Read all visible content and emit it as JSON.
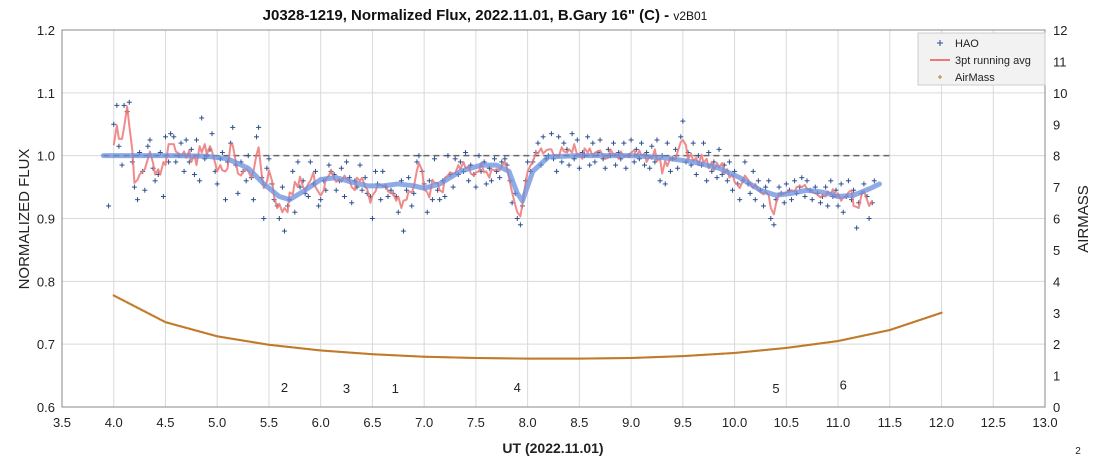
{
  "chart_data": {
    "type": "scatter",
    "title": "J0328-1219, Normalized Flux, 2022.11.01, B.Gary 16\" (C)",
    "title_suffix": " - ",
    "version": "v2B01",
    "xlabel": "UT (2022.11.01)",
    "ylabel": "NORMALIZED FLUX",
    "y2label": "AIRMASS",
    "xlim": [
      3.5,
      13.0
    ],
    "ylim": [
      0.6,
      1.2
    ],
    "y2lim": [
      0,
      12
    ],
    "x_ticks": [
      "3.5",
      "4.0",
      "4.5",
      "5.0",
      "5.5",
      "6.0",
      "6.5",
      "7.0",
      "7.5",
      "8.0",
      "8.5",
      "9.0",
      "9.5",
      "10.0",
      "10.5",
      "11.0",
      "11.5",
      "12.0",
      "12.5",
      "13.0"
    ],
    "y_ticks": [
      "0.6",
      "0.7",
      "0.8",
      "0.9",
      "1.0",
      "1.1",
      "1.2"
    ],
    "y2_ticks": [
      "0",
      "1",
      "2",
      "3",
      "4",
      "5",
      "6",
      "7",
      "8",
      "9",
      "10",
      "11",
      "12"
    ],
    "grid": true,
    "legend_position": "top-right",
    "legend": [
      {
        "name": "HAO",
        "color": "#2f4f8f",
        "marker": "plus"
      },
      {
        "name": "3pt running avg",
        "color": "#ee7777",
        "marker": "line"
      },
      {
        "name": "AirMass",
        "color": "#c07a2a",
        "marker": "plus-small"
      }
    ],
    "reference_line": {
      "y": 1.0,
      "x_range": [
        3.9,
        11.5
      ],
      "style": "dashed",
      "color": "#666666"
    },
    "model_curve": {
      "color": "#6a8fdc",
      "points": [
        [
          3.9,
          1.0
        ],
        [
          4.2,
          1.0
        ],
        [
          4.6,
          1.0
        ],
        [
          4.9,
          0.999
        ],
        [
          5.1,
          0.995
        ],
        [
          5.3,
          0.98
        ],
        [
          5.45,
          0.955
        ],
        [
          5.6,
          0.935
        ],
        [
          5.7,
          0.93
        ],
        [
          5.85,
          0.945
        ],
        [
          6.0,
          0.962
        ],
        [
          6.15,
          0.965
        ],
        [
          6.3,
          0.958
        ],
        [
          6.45,
          0.952
        ],
        [
          6.6,
          0.952
        ],
        [
          6.75,
          0.955
        ],
        [
          6.9,
          0.952
        ],
        [
          7.0,
          0.948
        ],
        [
          7.15,
          0.955
        ],
        [
          7.35,
          0.975
        ],
        [
          7.55,
          0.985
        ],
        [
          7.7,
          0.985
        ],
        [
          7.82,
          0.975
        ],
        [
          7.9,
          0.94
        ],
        [
          7.95,
          0.928
        ],
        [
          8.05,
          0.975
        ],
        [
          8.2,
          0.998
        ],
        [
          8.5,
          1.0
        ],
        [
          9.0,
          1.0
        ],
        [
          9.3,
          0.997
        ],
        [
          9.6,
          0.99
        ],
        [
          9.85,
          0.98
        ],
        [
          10.05,
          0.965
        ],
        [
          10.25,
          0.945
        ],
        [
          10.4,
          0.937
        ],
        [
          10.55,
          0.94
        ],
        [
          10.7,
          0.945
        ],
        [
          10.85,
          0.942
        ],
        [
          11.0,
          0.935
        ],
        [
          11.15,
          0.937
        ],
        [
          11.3,
          0.947
        ],
        [
          11.4,
          0.955
        ]
      ]
    },
    "airmass": {
      "color": "#c07a2a",
      "points": [
        [
          4.0,
          3.55
        ],
        [
          4.5,
          2.7
        ],
        [
          5.0,
          2.25
        ],
        [
          5.5,
          1.98
        ],
        [
          6.0,
          1.8
        ],
        [
          6.5,
          1.68
        ],
        [
          7.0,
          1.6
        ],
        [
          7.5,
          1.56
        ],
        [
          8.0,
          1.54
        ],
        [
          8.5,
          1.54
        ],
        [
          9.0,
          1.56
        ],
        [
          9.5,
          1.62
        ],
        [
          10.0,
          1.72
        ],
        [
          10.5,
          1.88
        ],
        [
          11.0,
          2.1
        ],
        [
          11.5,
          2.45
        ],
        [
          12.0,
          3.0
        ]
      ]
    },
    "hao_points": [
      [
        3.95,
        0.92
      ],
      [
        4.0,
        1.05
      ],
      [
        4.03,
        1.08
      ],
      [
        4.05,
        1.015
      ],
      [
        4.08,
        0.985
      ],
      [
        4.1,
        1.08
      ],
      [
        4.13,
        1.07
      ],
      [
        4.15,
        1.085
      ],
      [
        4.18,
        0.99
      ],
      [
        4.2,
        0.95
      ],
      [
        4.23,
        0.93
      ],
      [
        4.25,
        1.005
      ],
      [
        4.28,
        0.975
      ],
      [
        4.3,
        0.945
      ],
      [
        4.33,
        1.015
      ],
      [
        4.35,
        1.025
      ],
      [
        4.38,
        0.98
      ],
      [
        4.4,
        0.96
      ],
      [
        4.43,
        0.97
      ],
      [
        4.45,
        1.005
      ],
      [
        4.48,
        0.935
      ],
      [
        4.5,
        1.03
      ],
      [
        4.53,
        0.99
      ],
      [
        4.55,
        1.035
      ],
      [
        4.58,
        1.03
      ],
      [
        4.6,
        0.99
      ],
      [
        4.63,
        1.0
      ],
      [
        4.65,
        1.02
      ],
      [
        4.68,
        0.975
      ],
      [
        4.7,
        1.025
      ],
      [
        4.73,
        0.99
      ],
      [
        4.75,
        1.01
      ],
      [
        4.78,
        0.97
      ],
      [
        4.8,
        1.025
      ],
      [
        4.83,
        0.96
      ],
      [
        4.85,
        1.06
      ],
      [
        4.88,
        0.995
      ],
      [
        4.9,
        1.0
      ],
      [
        4.93,
        1.01
      ],
      [
        4.95,
        1.035
      ],
      [
        4.98,
        0.975
      ],
      [
        5.0,
        0.955
      ],
      [
        5.03,
        0.995
      ],
      [
        5.05,
        1.005
      ],
      [
        5.08,
        0.93
      ],
      [
        5.1,
        0.99
      ],
      [
        5.13,
        1.02
      ],
      [
        5.15,
        1.045
      ],
      [
        5.18,
        0.985
      ],
      [
        5.2,
        0.94
      ],
      [
        5.23,
        0.99
      ],
      [
        5.25,
        0.975
      ],
      [
        5.28,
        0.96
      ],
      [
        5.3,
        1.0
      ],
      [
        5.33,
        0.965
      ],
      [
        5.35,
        0.93
      ],
      [
        5.38,
        1.03
      ],
      [
        5.4,
        1.045
      ],
      [
        5.43,
        0.965
      ],
      [
        5.45,
        0.9
      ],
      [
        5.48,
        0.98
      ],
      [
        5.5,
        0.995
      ],
      [
        5.53,
        0.955
      ],
      [
        5.55,
        0.93
      ],
      [
        5.58,
        0.92
      ],
      [
        5.6,
        0.9
      ],
      [
        5.63,
        0.95
      ],
      [
        5.65,
        0.88
      ],
      [
        5.68,
        0.92
      ],
      [
        5.7,
        0.93
      ],
      [
        5.73,
        0.975
      ],
      [
        5.75,
        0.91
      ],
      [
        5.78,
        0.99
      ],
      [
        5.8,
        0.95
      ],
      [
        5.83,
        0.96
      ],
      [
        5.85,
        0.94
      ],
      [
        5.88,
        0.935
      ],
      [
        5.9,
        0.99
      ],
      [
        5.93,
        0.955
      ],
      [
        5.95,
        0.975
      ],
      [
        5.98,
        0.92
      ],
      [
        6.0,
        0.93
      ],
      [
        6.03,
        0.96
      ],
      [
        6.05,
        0.945
      ],
      [
        6.08,
        0.985
      ],
      [
        6.1,
        0.975
      ],
      [
        6.13,
        0.97
      ],
      [
        6.15,
        0.945
      ],
      [
        6.18,
        0.96
      ],
      [
        6.2,
        0.98
      ],
      [
        6.23,
        0.935
      ],
      [
        6.25,
        0.99
      ],
      [
        6.28,
        0.965
      ],
      [
        6.3,
        0.925
      ],
      [
        6.33,
        0.96
      ],
      [
        6.35,
        0.95
      ],
      [
        6.38,
        0.985
      ],
      [
        6.4,
        0.945
      ],
      [
        6.43,
        0.965
      ],
      [
        6.45,
        0.94
      ],
      [
        6.48,
        0.935
      ],
      [
        6.5,
        0.9
      ],
      [
        6.53,
        0.975
      ],
      [
        6.55,
        0.955
      ],
      [
        6.58,
        0.93
      ],
      [
        6.6,
        0.975
      ],
      [
        6.63,
        0.95
      ],
      [
        6.65,
        0.935
      ],
      [
        6.68,
        0.945
      ],
      [
        6.7,
        0.94
      ],
      [
        6.73,
        0.935
      ],
      [
        6.75,
        0.91
      ],
      [
        6.78,
        0.96
      ],
      [
        6.8,
        0.88
      ],
      [
        6.83,
        0.945
      ],
      [
        6.85,
        0.965
      ],
      [
        6.88,
        0.92
      ],
      [
        6.9,
        0.94
      ],
      [
        6.93,
        0.99
      ],
      [
        6.95,
        1.0
      ],
      [
        6.98,
        0.975
      ],
      [
        7.0,
        0.955
      ],
      [
        7.03,
        0.91
      ],
      [
        7.05,
        0.96
      ],
      [
        7.08,
        0.93
      ],
      [
        7.1,
        0.995
      ],
      [
        7.13,
        0.945
      ],
      [
        7.15,
        0.93
      ],
      [
        7.18,
        0.96
      ],
      [
        7.2,
        0.935
      ],
      [
        7.23,
        1.0
      ],
      [
        7.25,
        0.97
      ],
      [
        7.28,
        0.95
      ],
      [
        7.3,
        0.995
      ],
      [
        7.33,
        0.97
      ],
      [
        7.35,
        0.99
      ],
      [
        7.38,
        0.975
      ],
      [
        7.4,
        1.005
      ],
      [
        7.43,
        0.96
      ],
      [
        7.45,
        0.985
      ],
      [
        7.48,
        0.97
      ],
      [
        7.5,
        0.95
      ],
      [
        7.53,
        1.0
      ],
      [
        7.55,
        0.975
      ],
      [
        7.58,
        0.99
      ],
      [
        7.6,
        0.955
      ],
      [
        7.63,
        0.98
      ],
      [
        7.65,
        0.96
      ],
      [
        7.68,
        0.995
      ],
      [
        7.7,
        0.975
      ],
      [
        7.73,
        0.965
      ],
      [
        7.75,
        0.99
      ],
      [
        7.78,
        0.995
      ],
      [
        7.8,
        0.985
      ],
      [
        7.83,
        0.96
      ],
      [
        7.85,
        0.925
      ],
      [
        7.88,
        0.94
      ],
      [
        7.9,
        0.9
      ],
      [
        7.93,
        0.89
      ],
      [
        7.95,
        0.92
      ],
      [
        7.98,
        0.96
      ],
      [
        8.0,
        0.99
      ],
      [
        8.03,
        0.975
      ],
      [
        8.05,
        0.99
      ],
      [
        8.08,
        1.005
      ],
      [
        8.1,
        1.02
      ],
      [
        8.13,
        0.985
      ],
      [
        8.15,
        1.03
      ],
      [
        8.18,
        0.995
      ],
      [
        8.2,
        1.0
      ],
      [
        8.23,
        1.035
      ],
      [
        8.25,
        0.995
      ],
      [
        8.28,
        0.975
      ],
      [
        8.3,
        1.03
      ],
      [
        8.33,
        0.99
      ],
      [
        8.35,
        1.02
      ],
      [
        8.38,
        1.01
      ],
      [
        8.4,
        0.985
      ],
      [
        8.43,
        1.035
      ],
      [
        8.45,
        0.995
      ],
      [
        8.48,
        1.025
      ],
      [
        8.5,
        0.98
      ],
      [
        8.53,
        1.005
      ],
      [
        8.55,
        1.0
      ],
      [
        8.58,
        1.03
      ],
      [
        8.6,
        0.985
      ],
      [
        8.63,
        1.02
      ],
      [
        8.65,
        0.99
      ],
      [
        8.68,
        1.005
      ],
      [
        8.7,
        1.025
      ],
      [
        8.73,
        0.995
      ],
      [
        8.75,
        0.98
      ],
      [
        8.78,
        1.01
      ],
      [
        8.8,
        1.0
      ],
      [
        8.83,
        1.02
      ],
      [
        8.85,
        0.985
      ],
      [
        8.88,
        1.005
      ],
      [
        8.9,
        0.995
      ],
      [
        8.93,
        1.02
      ],
      [
        8.95,
        0.98
      ],
      [
        8.98,
        1.0
      ],
      [
        9.0,
        1.025
      ],
      [
        9.03,
        0.99
      ],
      [
        9.05,
        1.01
      ],
      [
        9.08,
        0.995
      ],
      [
        9.1,
        1.02
      ],
      [
        9.13,
        0.985
      ],
      [
        9.15,
        1.005
      ],
      [
        9.18,
        0.98
      ],
      [
        9.2,
        1.015
      ],
      [
        9.23,
        0.99
      ],
      [
        9.25,
        1.025
      ],
      [
        9.28,
        0.96
      ],
      [
        9.3,
        1.0
      ],
      [
        9.33,
        0.955
      ],
      [
        9.35,
        1.02
      ],
      [
        9.38,
        0.975
      ],
      [
        9.4,
        0.995
      ],
      [
        9.43,
        1.01
      ],
      [
        9.45,
        0.98
      ],
      [
        9.48,
        1.03
      ],
      [
        9.5,
        1.055
      ],
      [
        9.53,
        0.99
      ],
      [
        9.55,
        1.005
      ],
      [
        9.58,
        0.985
      ],
      [
        9.6,
        1.02
      ],
      [
        9.63,
        0.97
      ],
      [
        9.65,
        1.0
      ],
      [
        9.68,
        0.985
      ],
      [
        9.7,
        1.02
      ],
      [
        9.73,
        0.96
      ],
      [
        9.75,
        1.005
      ],
      [
        9.78,
        0.975
      ],
      [
        9.8,
        0.99
      ],
      [
        9.83,
        0.965
      ],
      [
        9.85,
        1.01
      ],
      [
        9.88,
        0.97
      ],
      [
        9.9,
        0.985
      ],
      [
        9.93,
        0.96
      ],
      [
        9.95,
        0.99
      ],
      [
        9.98,
        0.945
      ],
      [
        10.0,
        0.975
      ],
      [
        10.03,
        0.955
      ],
      [
        10.05,
        0.93
      ],
      [
        10.08,
        0.96
      ],
      [
        10.1,
        0.99
      ],
      [
        10.13,
        0.955
      ],
      [
        10.15,
        0.94
      ],
      [
        10.18,
        0.975
      ],
      [
        10.2,
        0.93
      ],
      [
        10.23,
        0.96
      ],
      [
        10.25,
        0.945
      ],
      [
        10.28,
        0.92
      ],
      [
        10.3,
        0.95
      ],
      [
        10.33,
        0.96
      ],
      [
        10.35,
        0.9
      ],
      [
        10.38,
        0.89
      ],
      [
        10.4,
        0.93
      ],
      [
        10.43,
        0.95
      ],
      [
        10.45,
        0.94
      ],
      [
        10.48,
        0.925
      ],
      [
        10.5,
        0.955
      ],
      [
        10.53,
        0.945
      ],
      [
        10.55,
        0.93
      ],
      [
        10.58,
        0.96
      ],
      [
        10.6,
        0.94
      ],
      [
        10.63,
        0.95
      ],
      [
        10.65,
        0.965
      ],
      [
        10.68,
        0.935
      ],
      [
        10.7,
        0.96
      ],
      [
        10.73,
        0.945
      ],
      [
        10.75,
        0.93
      ],
      [
        10.78,
        0.95
      ],
      [
        10.8,
        0.94
      ],
      [
        10.83,
        0.925
      ],
      [
        10.85,
        0.935
      ],
      [
        10.88,
        0.95
      ],
      [
        10.9,
        0.92
      ],
      [
        10.93,
        0.96
      ],
      [
        10.95,
        0.935
      ],
      [
        10.98,
        0.945
      ],
      [
        11.0,
        0.92
      ],
      [
        11.03,
        0.955
      ],
      [
        11.05,
        0.91
      ],
      [
        11.08,
        0.935
      ],
      [
        11.1,
        0.96
      ],
      [
        11.13,
        0.93
      ],
      [
        11.15,
        0.945
      ],
      [
        11.18,
        0.885
      ],
      [
        11.2,
        0.925
      ],
      [
        11.23,
        0.94
      ],
      [
        11.25,
        0.955
      ],
      [
        11.28,
        0.935
      ],
      [
        11.3,
        0.9
      ],
      [
        11.33,
        0.925
      ],
      [
        11.35,
        0.96
      ]
    ],
    "annotations": [
      {
        "label": "2",
        "x": 5.65,
        "y": 0.624
      },
      {
        "label": "3",
        "x": 6.25,
        "y": 0.622
      },
      {
        "label": "1",
        "x": 6.72,
        "y": 0.622
      },
      {
        "label": "4",
        "x": 7.9,
        "y": 0.624
      },
      {
        "label": "5",
        "x": 10.4,
        "y": 0.622
      },
      {
        "label": "6",
        "x": 11.05,
        "y": 0.628
      }
    ],
    "corner_label": "2"
  }
}
